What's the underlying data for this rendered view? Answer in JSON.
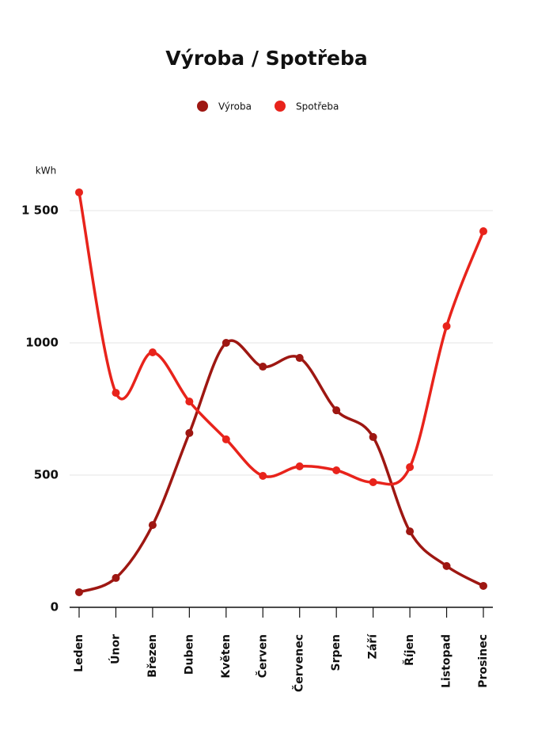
{
  "chart_data": {
    "type": "line",
    "title": "Výroba / Spotřeba",
    "y_label": "kWh",
    "categories": [
      "Leden",
      "Únor",
      "Březen",
      "Duben",
      "Květen",
      "Červen",
      "Červenec",
      "Srpen",
      "Září",
      "Říjen",
      "Listopad",
      "Prosinec"
    ],
    "series": [
      {
        "name": "Výroba",
        "color": "#9e1712",
        "values": [
          57,
          111,
          311,
          659,
          1000,
          910,
          943,
          745,
          644,
          287,
          156,
          81
        ]
      },
      {
        "name": "Spotřeba",
        "color": "#e8231b",
        "values": [
          1569,
          811,
          964,
          778,
          635,
          497,
          533,
          518,
          473,
          530,
          1063,
          1422
        ]
      }
    ],
    "ylim": [
      0,
      1600
    ],
    "yticks": [
      0,
      500,
      1000,
      {
        "value": 1500,
        "label": "1 500"
      }
    ],
    "grid": true
  }
}
